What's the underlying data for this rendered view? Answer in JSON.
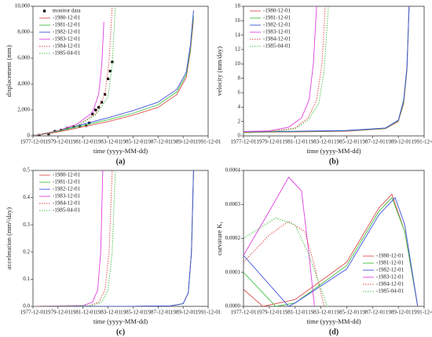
{
  "chart_data": [
    {
      "type": "line",
      "label": "(a)",
      "xlabel": "time (yyyy-MM-dd)",
      "ylabel": "displacement (mm)",
      "legend": "upper left",
      "xlim": [
        "1977-12-01",
        "1991-12-01"
      ],
      "xticks": [
        "1977-12-01",
        "1979-12-01",
        "1981-12-01",
        "1983-12-01",
        "1985-12-01",
        "1987-12-01",
        "1989-12-01",
        "1991-12-01"
      ],
      "ylim": [
        0,
        10000
      ],
      "yticks": [
        0,
        {
          "value": 2000,
          "label": "2,000"
        },
        {
          "value": 4000,
          "label": "4,000"
        },
        {
          "value": 6000,
          "label": "6,000"
        },
        {
          "value": 8000,
          "label": "8,000"
        },
        {
          "value": 10000,
          "label": "10,000"
        }
      ],
      "series": [
        {
          "name": "monitor data",
          "color": "#000000",
          "marker": "square",
          "x": [
            "1977-12-01",
            "1978-06-01",
            "1979-03-01",
            "1979-09-01",
            "1980-03-01",
            "1980-09-01",
            "1981-03-01",
            "1981-09-01",
            "1982-03-01",
            "1982-06-01",
            "1982-09-01",
            "1982-12-01",
            "1983-03-01",
            "1983-06-01",
            "1983-09-01",
            "1983-12-01",
            "1984-02-01",
            "1984-04-01"
          ],
          "values": [
            0,
            50,
            150,
            350,
            450,
            600,
            700,
            750,
            800,
            1000,
            1700,
            2000,
            2200,
            2600,
            3200,
            4400,
            5000,
            5700
          ]
        },
        {
          "name": "-1980-12-01",
          "color": "#e05050",
          "linestyle": "solid",
          "x": [
            "1977-12-01",
            "1979-12-01",
            "1981-12-01",
            "1983-12-01",
            "1985-12-01",
            "1987-12-01",
            "1989-06-01",
            "1990-03-01",
            "1990-07-01",
            "1990-10-01"
          ],
          "values": [
            0,
            300,
            700,
            1100,
            1600,
            2200,
            3200,
            4500,
            6500,
            9000
          ]
        },
        {
          "name": "-1981-12-01",
          "color": "#40c040",
          "linestyle": "solid",
          "x": [
            "1977-12-01",
            "1979-12-01",
            "1981-12-01",
            "1983-12-01",
            "1985-12-01",
            "1987-12-01",
            "1989-06-01",
            "1990-03-01",
            "1990-07-01",
            "1990-10-01"
          ],
          "values": [
            0,
            350,
            800,
            1250,
            1750,
            2400,
            3400,
            4700,
            6700,
            9300
          ]
        },
        {
          "name": "-1982-12-01",
          "color": "#4050e0",
          "linestyle": "solid",
          "x": [
            "1977-12-01",
            "1979-12-01",
            "1981-12-01",
            "1983-12-01",
            "1985-12-01",
            "1987-12-01",
            "1989-06-01",
            "1990-03-01",
            "1990-07-01",
            "1990-10-01"
          ],
          "values": [
            0,
            400,
            900,
            1400,
            1950,
            2600,
            3600,
            4900,
            7000,
            9700
          ]
        },
        {
          "name": "-1983-12-01",
          "color": "#e040e0",
          "linestyle": "solid",
          "x": [
            "1977-12-01",
            "1979-12-01",
            "1981-06-01",
            "1982-09-01",
            "1983-03-01",
            "1983-06-01",
            "1983-08-01"
          ],
          "values": [
            0,
            400,
            900,
            1800,
            3200,
            5500,
            8800
          ]
        },
        {
          "name": "-1984-12-01",
          "color": "#e04040",
          "linestyle": "dotted",
          "x": [
            "1977-12-01",
            "1979-12-01",
            "1981-06-01",
            "1982-12-01",
            "1983-09-01",
            "1984-01-01",
            "1984-04-01"
          ],
          "values": [
            0,
            400,
            800,
            1700,
            3200,
            5800,
            10000
          ]
        },
        {
          "name": "-1985-04-01",
          "color": "#40c040",
          "linestyle": "dotted",
          "x": [
            "1977-12-01",
            "1979-12-01",
            "1981-06-01",
            "1982-12-01",
            "1983-12-01",
            "1984-04-01",
            "1984-07-01"
          ],
          "values": [
            0,
            380,
            780,
            1600,
            3000,
            5500,
            10000
          ]
        }
      ]
    },
    {
      "type": "line",
      "label": "(b)",
      "xlabel": "time (yyyy-MM-dd)",
      "ylabel": "velocity (mm/day)",
      "legend": "upper left",
      "xlim": [
        "1977-12-01",
        "1991-12-01"
      ],
      "xticks": [
        "1977-12-01",
        "1979-12-01",
        "1981-12-01",
        "1983-12-01",
        "1985-12-01",
        "1987-12-01",
        "1989-12-01",
        "1991-12-01"
      ],
      "ylim": [
        0,
        18
      ],
      "yticks": [
        0,
        2,
        4,
        6,
        8,
        10,
        12,
        14,
        16,
        18
      ],
      "series": [
        {
          "name": "-1980-12-01",
          "color": "#e05050",
          "linestyle": "solid",
          "x": [
            "1977-12-01",
            "1981-12-01",
            "1985-12-01",
            "1988-12-01",
            "1989-12-01",
            "1990-05-01",
            "1990-08-01",
            "1990-10-01"
          ],
          "values": [
            0.5,
            0.55,
            0.65,
            1.0,
            2.0,
            4.5,
            9,
            18
          ]
        },
        {
          "name": "-1981-12-01",
          "color": "#40c040",
          "linestyle": "solid",
          "x": [
            "1977-12-01",
            "1981-12-01",
            "1985-12-01",
            "1988-12-01",
            "1989-12-01",
            "1990-05-01",
            "1990-08-01",
            "1990-10-01"
          ],
          "values": [
            0.55,
            0.6,
            0.7,
            1.05,
            2.1,
            4.7,
            9.3,
            18
          ]
        },
        {
          "name": "-1982-12-01",
          "color": "#4050e0",
          "linestyle": "solid",
          "x": [
            "1977-12-01",
            "1981-12-01",
            "1985-12-01",
            "1988-12-01",
            "1989-12-01",
            "1990-05-01",
            "1990-08-01",
            "1990-10-01"
          ],
          "values": [
            0.6,
            0.65,
            0.75,
            1.1,
            2.2,
            5,
            9.6,
            18
          ]
        },
        {
          "name": "-1983-12-01",
          "color": "#e040e0",
          "linestyle": "solid",
          "x": [
            "1977-12-01",
            "1979-12-01",
            "1981-06-01",
            "1982-06-01",
            "1983-01-01",
            "1983-05-01",
            "1983-08-01"
          ],
          "values": [
            0.6,
            0.7,
            1.2,
            2.5,
            5,
            10,
            18
          ]
        },
        {
          "name": "-1984-12-01",
          "color": "#e04040",
          "linestyle": "dotted",
          "x": [
            "1977-12-01",
            "1979-12-01",
            "1981-12-01",
            "1982-12-01",
            "1983-08-01",
            "1984-01-01",
            "1984-04-01"
          ],
          "values": [
            0.4,
            0.6,
            1.1,
            2.5,
            5,
            10,
            18
          ]
        },
        {
          "name": "-1985-04-01",
          "color": "#40c040",
          "linestyle": "dotted",
          "x": [
            "1977-12-01",
            "1979-12-01",
            "1981-12-01",
            "1982-12-01",
            "1983-10-01",
            "1984-03-01",
            "1984-07-01"
          ],
          "values": [
            0.4,
            0.55,
            1.0,
            2.2,
            4.5,
            9,
            18
          ]
        }
      ]
    },
    {
      "type": "line",
      "label": "(c)",
      "xlabel": "time (yyyy-MM-dd)",
      "ylabel": "acceleration (mm²/day)",
      "legend": "upper left",
      "xlim": [
        "1977-12-01",
        "1991-12-01"
      ],
      "xticks": [
        "1977-12-01",
        "1979-12-01",
        "1981-12-01",
        "1983-12-01",
        "1985-12-01",
        "1987-12-01",
        "1989-12-01",
        "1991-12-01"
      ],
      "ylim": [
        0,
        0.5
      ],
      "yticks": [
        {
          "value": 0,
          "label": "0.0"
        },
        0.1,
        0.2,
        0.3,
        0.4,
        0.5
      ],
      "series": [
        {
          "name": "-1980-12-01",
          "color": "#e05050",
          "linestyle": "solid",
          "x": [
            "1977-12-01",
            "1985-12-01",
            "1988-12-01",
            "1989-12-01",
            "1990-05-01",
            "1990-08-01",
            "1990-10-01"
          ],
          "values": [
            0,
            0,
            0.002,
            0.01,
            0.05,
            0.2,
            0.5
          ]
        },
        {
          "name": "-1981-12-01",
          "color": "#40c040",
          "linestyle": "solid",
          "x": [
            "1977-12-01",
            "1985-12-01",
            "1988-12-01",
            "1989-12-01",
            "1990-05-01",
            "1990-08-01",
            "1990-10-01"
          ],
          "values": [
            0,
            0,
            0.002,
            0.01,
            0.05,
            0.2,
            0.5
          ]
        },
        {
          "name": "-1982-12-01",
          "color": "#4050e0",
          "linestyle": "solid",
          "x": [
            "1977-12-01",
            "1985-12-01",
            "1988-12-01",
            "1989-12-01",
            "1990-05-01",
            "1990-08-01",
            "1990-10-01"
          ],
          "values": [
            0,
            0,
            0.002,
            0.01,
            0.05,
            0.2,
            0.5
          ]
        },
        {
          "name": "-1983-12-01",
          "color": "#e040e0",
          "linestyle": "solid",
          "x": [
            "1977-12-01",
            "1981-12-01",
            "1982-09-01",
            "1983-02-01",
            "1983-05-01",
            "1983-07-01"
          ],
          "values": [
            0,
            0.003,
            0.015,
            0.06,
            0.2,
            0.5
          ]
        },
        {
          "name": "-1984-12-01",
          "color": "#e04040",
          "linestyle": "dotted",
          "x": [
            "1977-12-01",
            "1982-06-01",
            "1983-03-01",
            "1983-09-01",
            "1984-01-01",
            "1984-04-01"
          ],
          "values": [
            0,
            0.003,
            0.015,
            0.06,
            0.2,
            0.5
          ]
        },
        {
          "name": "-1985-04-01",
          "color": "#40c040",
          "linestyle": "dotted",
          "x": [
            "1977-12-01",
            "1982-09-01",
            "1983-06-01",
            "1983-12-01",
            "1984-04-01",
            "1984-07-01"
          ],
          "values": [
            0,
            0.003,
            0.015,
            0.06,
            0.2,
            0.5
          ]
        }
      ]
    },
    {
      "type": "line",
      "label": "(d)",
      "xlabel": "time (yyyy-MM-dd)",
      "ylabel": "curvature K₁",
      "legend": "lower right",
      "xlim": [
        "1977-12-01",
        "1991-12-01"
      ],
      "xticks": [
        "1977-12-01",
        "1979-12-01",
        "1981-12-01",
        "1983-12-01",
        "1985-12-01",
        "1987-12-01",
        "1989-12-01",
        "1991-12-01"
      ],
      "ylim": [
        0,
        0.0004
      ],
      "yticks": [
        {
          "value": 0,
          "label": "0.0000"
        },
        {
          "value": 0.0001,
          "label": "0.0001"
        },
        {
          "value": 0.0002,
          "label": "0.0002"
        },
        {
          "value": 0.0003,
          "label": "0.0003"
        },
        {
          "value": 0.0004,
          "label": "0.0004"
        }
      ],
      "series": [
        {
          "name": "-1980-12-01",
          "color": "#e05050",
          "linestyle": "solid",
          "x": [
            "1977-12-01",
            "1979-06-01",
            "1981-12-01",
            "1985-12-01",
            "1988-06-01",
            "1989-06-01",
            "1990-06-01",
            "1991-06-01"
          ],
          "values": [
            5e-05,
            0,
            2e-05,
            0.00013,
            0.00029,
            0.00033,
            0.00022,
            0
          ]
        },
        {
          "name": "-1981-12-01",
          "color": "#40c040",
          "linestyle": "solid",
          "x": [
            "1977-12-01",
            "1980-06-01",
            "1981-12-01",
            "1985-12-01",
            "1988-06-01",
            "1989-06-01",
            "1990-06-01",
            "1991-06-01"
          ],
          "values": [
            0.0001,
            0,
            1e-05,
            0.00012,
            0.00028,
            0.00032,
            0.00022,
            0
          ]
        },
        {
          "name": "-1982-12-01",
          "color": "#4050e0",
          "linestyle": "solid",
          "x": [
            "1977-12-01",
            "1981-06-01",
            "1981-12-01",
            "1985-12-01",
            "1988-06-01",
            "1989-09-01",
            "1990-06-01",
            "1991-06-01"
          ],
          "values": [
            0.00015,
            0,
            1e-05,
            0.00011,
            0.00027,
            0.00032,
            0.00024,
            0
          ]
        },
        {
          "name": "-1983-12-01",
          "color": "#e040e0",
          "linestyle": "solid",
          "x": [
            "1977-12-01",
            "1979-12-01",
            "1981-06-01",
            "1982-06-01",
            "1983-01-01",
            "1983-06-01"
          ],
          "values": [
            0.00015,
            0.00028,
            0.00038,
            0.00034,
            0.00015,
            0
          ]
        },
        {
          "name": "-1984-12-01",
          "color": "#e04040",
          "linestyle": "dotted",
          "x": [
            "1977-12-01",
            "1979-12-01",
            "1981-06-01",
            "1982-09-01",
            "1983-06-01",
            "1984-03-01"
          ],
          "values": [
            0.00013,
            0.00021,
            0.00025,
            0.00022,
            0.00012,
            0
          ]
        },
        {
          "name": "-1985-04-01",
          "color": "#40c040",
          "linestyle": "dotted",
          "x": [
            "1977-12-01",
            "1980-06-01",
            "1981-12-01",
            "1983-01-01",
            "1984-06-01"
          ],
          "values": [
            0.0002,
            0.00026,
            0.00024,
            0.00015,
            0
          ]
        }
      ]
    }
  ]
}
